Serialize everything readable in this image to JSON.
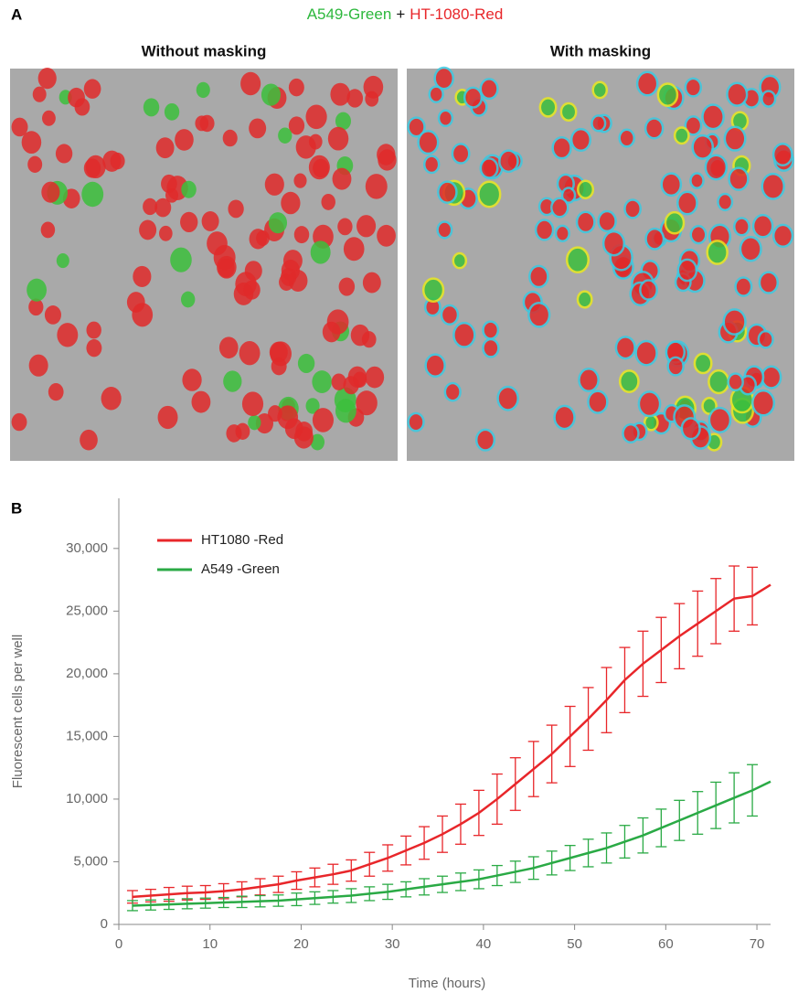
{
  "panel_a": {
    "label": "A",
    "title_parts": [
      {
        "text": "A549-Green",
        "color": "#2db83d"
      },
      {
        "text": "+",
        "color": "#111111"
      },
      {
        "text": "HT-1080-Red",
        "color": "#e8262a"
      }
    ],
    "images": [
      "Without masking",
      "With masking"
    ]
  },
  "panel_b": {
    "label": "B"
  },
  "chart_data": {
    "type": "line",
    "x": [
      1.5,
      3.5,
      5.5,
      7.5,
      9.5,
      11.5,
      13.5,
      15.5,
      17.5,
      19.5,
      21.5,
      23.5,
      25.5,
      27.5,
      29.5,
      31.5,
      33.5,
      35.5,
      37.5,
      39.5,
      41.5,
      43.5,
      45.5,
      47.5,
      49.5,
      51.5,
      53.5,
      55.5,
      57.5,
      59.5,
      61.5,
      63.5,
      65.5,
      67.5,
      69.5,
      71.5
    ],
    "series": [
      {
        "name": "HT1080 -Red",
        "color": "#e8262a",
        "values": [
          2200,
          2300,
          2400,
          2500,
          2550,
          2650,
          2800,
          3000,
          3200,
          3500,
          3750,
          4000,
          4300,
          4800,
          5300,
          5900,
          6500,
          7200,
          8000,
          8900,
          10000,
          11200,
          12400,
          13600,
          15000,
          16400,
          17900,
          19500,
          20800,
          21900,
          23000,
          24000,
          25000,
          26000,
          26200,
          27100
        ],
        "errors": [
          500,
          500,
          550,
          550,
          550,
          600,
          600,
          650,
          650,
          700,
          750,
          800,
          850,
          950,
          1050,
          1150,
          1300,
          1450,
          1600,
          1800,
          2000,
          2100,
          2200,
          2300,
          2400,
          2500,
          2600,
          2600,
          2600,
          2600,
          2600,
          2600,
          2600,
          2600,
          2300,
          null
        ]
      },
      {
        "name": "A549 -Green",
        "color": "#2aaa45",
        "values": [
          1500,
          1550,
          1600,
          1650,
          1700,
          1750,
          1800,
          1850,
          1900,
          2000,
          2100,
          2200,
          2300,
          2450,
          2600,
          2800,
          3000,
          3200,
          3400,
          3600,
          3900,
          4200,
          4500,
          4900,
          5300,
          5700,
          6100,
          6600,
          7100,
          7700,
          8300,
          8900,
          9500,
          10100,
          10700,
          11400
        ],
        "errors": [
          400,
          400,
          400,
          400,
          400,
          400,
          450,
          450,
          450,
          500,
          500,
          500,
          550,
          550,
          600,
          600,
          650,
          650,
          700,
          750,
          800,
          850,
          900,
          950,
          1000,
          1100,
          1200,
          1300,
          1400,
          1500,
          1600,
          1700,
          1850,
          2000,
          2050,
          null
        ]
      }
    ],
    "x_label": "Time (hours)",
    "y_label": "Fluorescent cells per well",
    "xlim": [
      0,
      72
    ],
    "ylim": [
      0,
      34000
    ],
    "xticks": [
      0,
      10,
      20,
      30,
      40,
      50,
      60,
      70
    ],
    "yticks": [
      0,
      {
        "value": 5000,
        "label": "5,000"
      },
      {
        "value": 10000,
        "label": "10,000"
      },
      {
        "value": 15000,
        "label": "15,000"
      },
      {
        "value": 20000,
        "label": "20,000"
      },
      {
        "value": 25000,
        "label": "25,000"
      },
      {
        "value": 30000,
        "label": "30,000"
      }
    ],
    "legend": "upper left"
  }
}
